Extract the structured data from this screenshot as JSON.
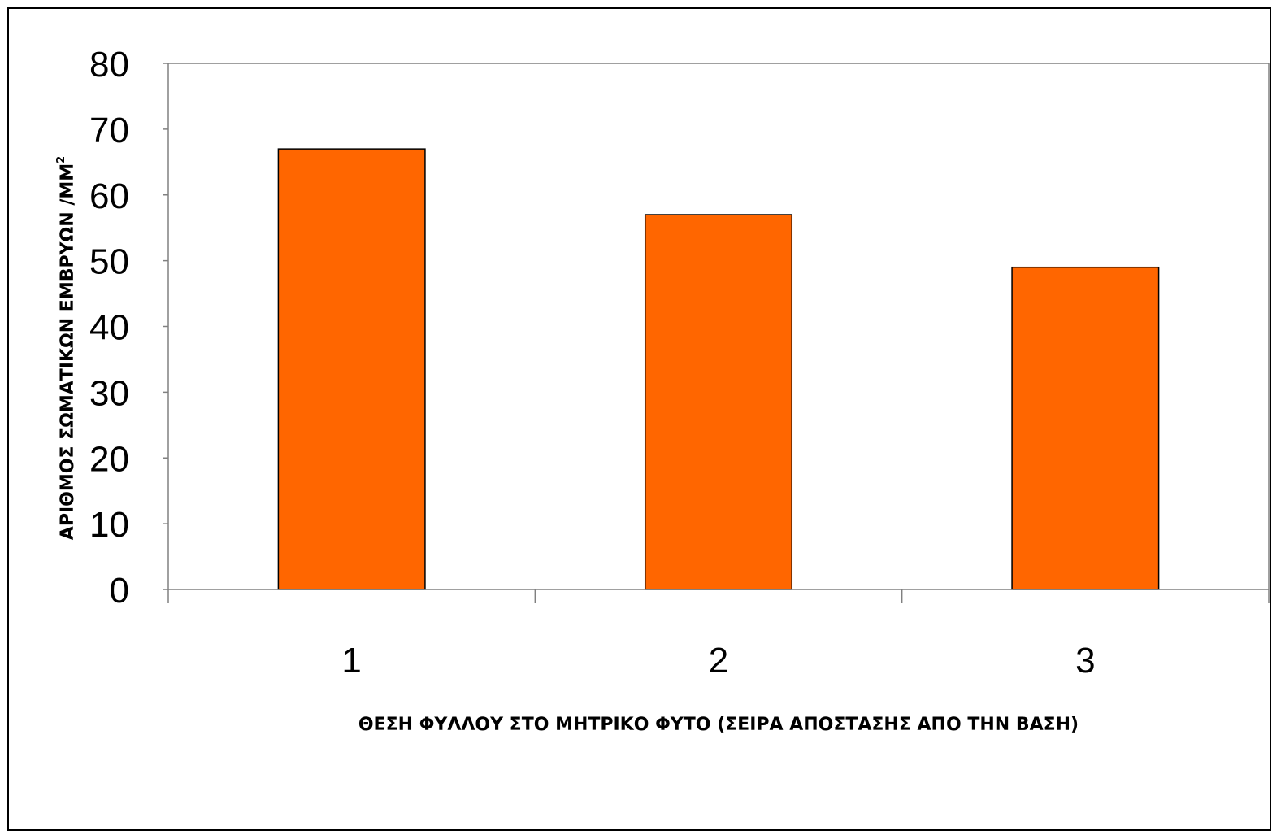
{
  "chart_data": {
    "type": "bar",
    "categories": [
      "1",
      "2",
      "3"
    ],
    "values": [
      67,
      57,
      49
    ],
    "title": "",
    "xlabel": "ΘΕΣΗ ΦΥΛΛΟΥ ΣΤΟ ΜΗΤΡΙΚΟ ΦΥΤΟ (ΣΕΙΡΑ ΑΠΟΣΤΑΣΗΣ ΑΠΟ ΤΗΝ ΒΑΣΗ)",
    "ylabel": "ΑΡΙΘΜΟΣ ΣΩΜΑΤΙΚΩΝ ΕΜΒΡΥΩΝ /ΜΜ",
    "ylabel_superscript": "2",
    "ylim": [
      0,
      80
    ],
    "yticks": [
      "0",
      "10",
      "20",
      "30",
      "40",
      "50",
      "60",
      "70",
      "80"
    ],
    "grid": false,
    "legend": "none",
    "bar_color": "#FF6600",
    "bar_edge_color": "#000000",
    "axis_color": "#808080"
  }
}
